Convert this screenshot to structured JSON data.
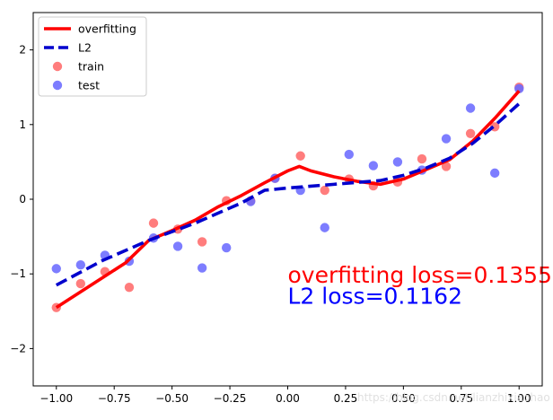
{
  "chart_data": {
    "type": "line+scatter",
    "xlim": [
      -1.1,
      1.1
    ],
    "ylim": [
      -2.5,
      2.5
    ],
    "xticks": [
      -1.0,
      -0.75,
      -0.5,
      -0.25,
      0.0,
      0.25,
      0.5,
      0.75,
      1.0
    ],
    "xtick_labels": [
      "−1.00",
      "−0.75",
      "−0.50",
      "−0.25",
      "0.00",
      "0.25",
      "0.50",
      "0.75",
      "1.00"
    ],
    "yticks": [
      -2,
      -1,
      0,
      1,
      2
    ],
    "ytick_labels": [
      "−2",
      "−1",
      "0",
      "1",
      "2"
    ],
    "grid": false,
    "legend_position": "top-left",
    "series": [
      {
        "name": "overfitting",
        "kind": "line",
        "color": "#ff0000",
        "style": "solid",
        "x": [
          -1.0,
          -0.9,
          -0.8,
          -0.7,
          -0.6,
          -0.5,
          -0.4,
          -0.3,
          -0.2,
          -0.1,
          0.0,
          0.05,
          0.1,
          0.2,
          0.3,
          0.4,
          0.5,
          0.6,
          0.7,
          0.8,
          0.9,
          1.0
        ],
        "y": [
          -1.45,
          -1.25,
          -1.05,
          -0.85,
          -0.55,
          -0.42,
          -0.28,
          -0.1,
          0.05,
          0.22,
          0.38,
          0.44,
          0.38,
          0.3,
          0.24,
          0.2,
          0.27,
          0.4,
          0.53,
          0.78,
          1.1,
          1.45
        ]
      },
      {
        "name": "L2",
        "kind": "line",
        "color": "#0000cd",
        "style": "dashed",
        "x": [
          -1.0,
          -0.8,
          -0.6,
          -0.4,
          -0.2,
          -0.1,
          0.0,
          0.2,
          0.4,
          0.5,
          0.6,
          0.7,
          0.8,
          0.9,
          1.0
        ],
        "y": [
          -1.15,
          -0.82,
          -0.55,
          -0.32,
          -0.05,
          0.12,
          0.15,
          0.2,
          0.25,
          0.32,
          0.42,
          0.55,
          0.75,
          1.0,
          1.28
        ]
      },
      {
        "name": "train",
        "kind": "scatter",
        "color": "#ff6b6b",
        "x": [
          -1.0,
          -0.895,
          -0.79,
          -0.685,
          -0.58,
          -0.475,
          -0.37,
          -0.265,
          -0.16,
          -0.055,
          0.055,
          0.16,
          0.265,
          0.37,
          0.475,
          0.58,
          0.685,
          0.79,
          0.895,
          1.0
        ],
        "y": [
          -1.45,
          -1.13,
          -0.97,
          -1.18,
          -0.32,
          -0.4,
          -0.57,
          -0.02,
          -0.02,
          0.28,
          0.58,
          0.12,
          0.27,
          0.18,
          0.23,
          0.54,
          0.44,
          0.88,
          0.97,
          1.5
        ]
      },
      {
        "name": "test",
        "kind": "scatter",
        "color": "#6b6bff",
        "x": [
          -1.0,
          -0.895,
          -0.79,
          -0.685,
          -0.58,
          -0.475,
          -0.37,
          -0.265,
          -0.16,
          -0.055,
          0.055,
          0.16,
          0.265,
          0.37,
          0.475,
          0.58,
          0.685,
          0.79,
          0.895,
          1.0
        ],
        "y": [
          -0.93,
          -0.88,
          -0.75,
          -0.83,
          -0.52,
          -0.63,
          -0.92,
          -0.65,
          -0.03,
          0.28,
          0.12,
          -0.38,
          0.6,
          0.45,
          0.5,
          0.39,
          0.81,
          1.22,
          0.35,
          1.48
        ]
      }
    ],
    "annotations": [
      {
        "text": "overfitting loss=0.1355",
        "x": 0.0,
        "y": -1.12,
        "color": "#ff0000"
      },
      {
        "text": "L2 loss=0.1162",
        "x": 0.0,
        "y": -1.4,
        "color": "#0000ff"
      }
    ]
  },
  "watermark": "https://blog.csdn.net/lianzhixiaohao"
}
